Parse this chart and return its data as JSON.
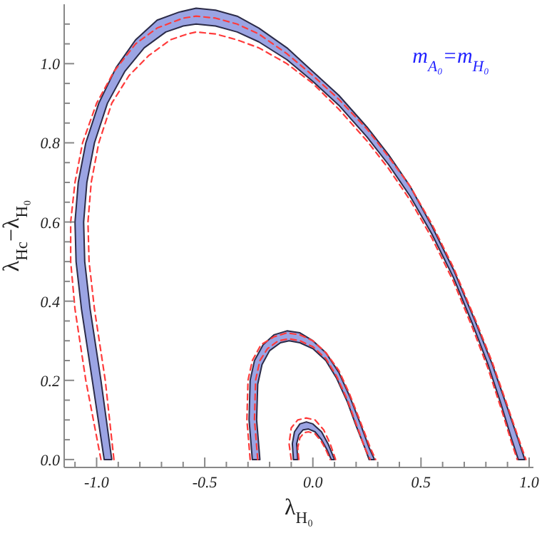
{
  "chart_data": {
    "type": "line",
    "xlabel": "λ$_{H₀}$",
    "ylabel": "λ$_{Hc}$−λ$_{H₀}$",
    "annotations": [
      "m$_{A₀}$=m$_{H₀}$"
    ],
    "xlim": [
      -1.15,
      1.02
    ],
    "ylim": [
      -0.02,
      1.15
    ],
    "xticks": [
      {
        "value": -1.1,
        "label": null
      },
      {
        "value": -1,
        "label": "-1.0"
      },
      {
        "value": -0.9,
        "label": null
      },
      {
        "value": -0.8,
        "label": null
      },
      {
        "value": -0.7,
        "label": null
      },
      {
        "value": -0.6,
        "label": null
      },
      {
        "value": -0.5,
        "label": "-0.5"
      },
      {
        "value": -0.4,
        "label": null
      },
      {
        "value": -0.3,
        "label": null
      },
      {
        "value": -0.2,
        "label": null
      },
      {
        "value": -0.1,
        "label": null
      },
      {
        "value": 0,
        "label": "0.0"
      },
      {
        "value": 0.1,
        "label": null
      },
      {
        "value": 0.2,
        "label": null
      },
      {
        "value": 0.3,
        "label": null
      },
      {
        "value": 0.4,
        "label": null
      },
      {
        "value": 0.5,
        "label": "0.5"
      },
      {
        "value": 0.6,
        "label": null
      },
      {
        "value": 0.7,
        "label": null
      },
      {
        "value": 0.8,
        "label": null
      },
      {
        "value": 0.9,
        "label": null
      },
      {
        "value": 1,
        "label": "1.0"
      }
    ],
    "yticks": [
      {
        "value": 0,
        "label": "0.0"
      },
      {
        "value": 0.05,
        "label": null
      },
      {
        "value": 0.1,
        "label": null
      },
      {
        "value": 0.15,
        "label": null
      },
      {
        "value": 0.2,
        "label": "0.2"
      },
      {
        "value": 0.25,
        "label": null
      },
      {
        "value": 0.3,
        "label": null
      },
      {
        "value": 0.35,
        "label": null
      },
      {
        "value": 0.4,
        "label": "0.4"
      },
      {
        "value": 0.45,
        "label": null
      },
      {
        "value": 0.5,
        "label": null
      },
      {
        "value": 0.55,
        "label": null
      },
      {
        "value": 0.6,
        "label": "0.6"
      },
      {
        "value": 0.65,
        "label": null
      },
      {
        "value": 0.7,
        "label": null
      },
      {
        "value": 0.75,
        "label": null
      },
      {
        "value": 0.8,
        "label": "0.8"
      },
      {
        "value": 0.85,
        "label": null
      },
      {
        "value": 0.9,
        "label": null
      },
      {
        "value": 0.95,
        "label": null
      },
      {
        "value": 1,
        "label": "1.0"
      },
      {
        "value": 1.05,
        "label": null
      },
      {
        "value": 1.1,
        "label": null
      }
    ],
    "series": [
      {
        "type": "area",
        "color": "#9ba4e3",
        "x": [
          -0.965,
          -1.02,
          -1.07,
          -1.095,
          -1.1,
          -1.085,
          -1.05,
          -0.99,
          -0.91,
          -0.82,
          -0.72,
          -0.62,
          -0.54,
          -0.45,
          -0.35,
          -0.25,
          -0.12,
          0,
          0.12,
          0.25,
          0.35,
          0.45,
          0.55,
          0.65,
          0.75,
          0.83,
          0.9,
          0.95,
          0.98,
          0.95,
          0.92,
          0.87,
          0.81,
          0.74,
          0.65,
          0.55,
          0.45,
          0.35,
          0.25,
          0.12,
          0,
          -0.12,
          -0.25,
          -0.35,
          -0.45,
          -0.54,
          -0.6,
          -0.68,
          -0.78,
          -0.87,
          -0.95,
          -1.01,
          -1.045,
          -1.06,
          -1.055,
          -1.03,
          -0.98,
          -0.93
        ],
        "values": [
          0,
          0.2,
          0.38,
          0.5,
          0.6,
          0.7,
          0.8,
          0.9,
          0.99,
          1.06,
          1.11,
          1.13,
          1.14,
          1.135,
          1.12,
          1.09,
          1.04,
          0.98,
          0.92,
          0.84,
          0.77,
          0.69,
          0.59,
          0.48,
          0.35,
          0.24,
          0.13,
          0.05,
          0,
          0,
          0.05,
          0.14,
          0.24,
          0.34,
          0.46,
          0.57,
          0.665,
          0.745,
          0.815,
          0.895,
          0.955,
          1.01,
          1.055,
          1.08,
          1.095,
          1.1,
          1.095,
          1.08,
          1.04,
          0.98,
          0.9,
          0.8,
          0.7,
          0.6,
          0.5,
          0.38,
          0.2,
          0
        ]
      },
      {
        "type": "area",
        "color": "#9ba4e3",
        "x": [
          -0.09,
          -0.095,
          -0.085,
          -0.06,
          -0.03,
          0,
          0.04,
          0.07,
          0.1,
          0.085,
          0.065,
          0.04,
          0.01,
          -0.02,
          -0.045,
          -0.065,
          -0.075,
          -0.07
        ],
        "values": [
          0,
          0.04,
          0.07,
          0.09,
          0.095,
          0.09,
          0.07,
          0.04,
          0,
          0,
          0.025,
          0.05,
          0.07,
          0.077,
          0.075,
          0.062,
          0.04,
          0
        ]
      },
      {
        "type": "area",
        "color": "#9ba4e3",
        "x": [
          -0.28,
          -0.295,
          -0.29,
          -0.27,
          -0.23,
          -0.18,
          -0.12,
          -0.06,
          0,
          0.06,
          0.12,
          0.17,
          0.22,
          0.26,
          0.285,
          0.26,
          0.24,
          0.2,
          0.16,
          0.11,
          0.06,
          0,
          -0.06,
          -0.11,
          -0.15,
          -0.2,
          -0.235,
          -0.255,
          -0.26,
          -0.245
        ],
        "values": [
          0,
          0.1,
          0.2,
          0.25,
          0.29,
          0.315,
          0.325,
          0.32,
          0.3,
          0.27,
          0.22,
          0.16,
          0.09,
          0.03,
          0,
          0,
          0.03,
          0.085,
          0.145,
          0.205,
          0.25,
          0.28,
          0.295,
          0.3,
          0.295,
          0.275,
          0.24,
          0.19,
          0.1,
          0
        ]
      },
      {
        "color": "#ff3b3b",
        "line_style": "dashed",
        "x": [
          -0.98,
          -1.05,
          -1.1,
          -1.12,
          -1.12,
          -1.1,
          -1.065,
          -1.0,
          -0.92,
          -0.82,
          -0.72,
          -0.6,
          -0.54,
          -0.45,
          -0.35,
          -0.25,
          -0.12,
          0,
          0.12,
          0.25,
          0.35,
          0.45,
          0.55,
          0.65,
          0.75,
          0.83,
          0.9,
          0.95,
          0.985
        ],
        "values": [
          0,
          0.2,
          0.38,
          0.5,
          0.6,
          0.7,
          0.8,
          0.9,
          0.98,
          1.05,
          1.09,
          1.115,
          1.12,
          1.115,
          1.1,
          1.075,
          1.025,
          0.97,
          0.91,
          0.835,
          0.765,
          0.69,
          0.595,
          0.485,
          0.355,
          0.245,
          0.135,
          0.055,
          0
        ]
      },
      {
        "color": "#ff3b3b",
        "line_style": "dashed",
        "x": [
          -0.92,
          -0.96,
          -1.01,
          -1.035,
          -1.04,
          -1.025,
          -0.99,
          -0.93,
          -0.85,
          -0.76,
          -0.66,
          -0.58,
          -0.54,
          -0.45,
          -0.35,
          -0.25,
          -0.12,
          0,
          0.12,
          0.25,
          0.35,
          0.45,
          0.55,
          0.65,
          0.74,
          0.81,
          0.87,
          0.915,
          0.945
        ],
        "values": [
          0,
          0.2,
          0.38,
          0.5,
          0.6,
          0.7,
          0.8,
          0.9,
          0.97,
          1.02,
          1.06,
          1.075,
          1.08,
          1.075,
          1.06,
          1.04,
          1.0,
          0.95,
          0.885,
          0.805,
          0.735,
          0.655,
          0.56,
          0.45,
          0.33,
          0.23,
          0.13,
          0.05,
          0
        ]
      },
      {
        "color": "#ff3b3b",
        "line_style": "dashed",
        "x": [
          -0.29,
          -0.305,
          -0.3,
          -0.28,
          -0.24,
          -0.18,
          -0.12,
          -0.06,
          0,
          0.06,
          0.12,
          0.17,
          0.22,
          0.265,
          0.29
        ],
        "values": [
          0,
          0.1,
          0.2,
          0.25,
          0.29,
          0.31,
          0.32,
          0.315,
          0.3,
          0.27,
          0.225,
          0.165,
          0.095,
          0.03,
          0
        ]
      },
      {
        "color": "#ff3b3b",
        "line_style": "dashed",
        "x": [
          -0.255,
          -0.27,
          -0.265,
          -0.245,
          -0.21,
          -0.16,
          -0.11,
          -0.06,
          0,
          0.06,
          0.11,
          0.16,
          0.2,
          0.24,
          0.265
        ],
        "values": [
          0,
          0.1,
          0.2,
          0.25,
          0.28,
          0.3,
          0.305,
          0.3,
          0.285,
          0.255,
          0.21,
          0.15,
          0.09,
          0.03,
          0
        ]
      },
      {
        "color": "#ff3b3b",
        "line_style": "dashed",
        "x": [
          -0.1,
          -0.11,
          -0.1,
          -0.07,
          -0.03,
          0.01,
          0.05,
          0.08,
          0.105
        ],
        "values": [
          0,
          0.04,
          0.08,
          0.1,
          0.105,
          0.1,
          0.075,
          0.04,
          0
        ]
      },
      {
        "color": "#ff3b3b",
        "line_style": "dashed",
        "x": [
          -0.065,
          -0.07,
          -0.06,
          -0.04,
          -0.02,
          0.01,
          0.04,
          0.06,
          0.08
        ],
        "values": [
          0,
          0.03,
          0.055,
          0.068,
          0.07,
          0.065,
          0.045,
          0.025,
          0
        ]
      }
    ]
  }
}
